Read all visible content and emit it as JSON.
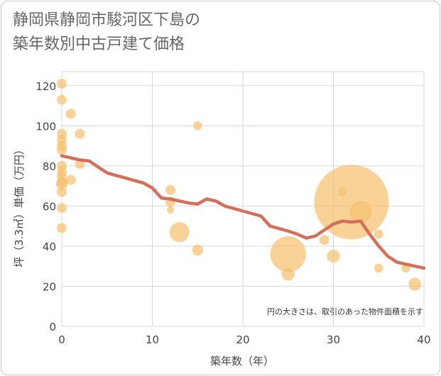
{
  "title": {
    "line1": "静岡県静岡市駿河区下島の",
    "line2": "築年数別中古戸建て価格"
  },
  "chart_data": {
    "type": "scatter",
    "title": "静岡県静岡市駿河区下島の築年数別中古戸建て価格",
    "xlabel": "築年数（年）",
    "ylabel": "坪（3.3㎡）単価（万円）",
    "xlim": [
      0,
      40
    ],
    "ylim": [
      0,
      127
    ],
    "xticks": [
      0,
      10,
      20,
      30,
      40
    ],
    "yticks": [
      0,
      20,
      40,
      60,
      80,
      100,
      120
    ],
    "grid": true,
    "note": "円の大きさは、取引のあった物件面積を示す",
    "colors": {
      "bubble": "#f5c06f",
      "line": "#d4705a",
      "grid": "#d0dbe6",
      "text": "#444444"
    },
    "bubbles": [
      {
        "x": 0,
        "y": 121,
        "size": 1
      },
      {
        "x": 0,
        "y": 113,
        "size": 1
      },
      {
        "x": 0,
        "y": 96,
        "size": 1
      },
      {
        "x": 0,
        "y": 93,
        "size": 1
      },
      {
        "x": 0,
        "y": 90,
        "size": 1
      },
      {
        "x": 0,
        "y": 88,
        "size": 1
      },
      {
        "x": 0,
        "y": 80,
        "size": 1
      },
      {
        "x": 0,
        "y": 77,
        "size": 1
      },
      {
        "x": 0,
        "y": 75,
        "size": 1
      },
      {
        "x": 0,
        "y": 72,
        "size": 1
      },
      {
        "x": 0,
        "y": 71,
        "size": 1.2
      },
      {
        "x": 0,
        "y": 67,
        "size": 1
      },
      {
        "x": 0,
        "y": 59,
        "size": 1
      },
      {
        "x": 0,
        "y": 49,
        "size": 1
      },
      {
        "x": 1,
        "y": 106,
        "size": 1
      },
      {
        "x": 1,
        "y": 73,
        "size": 1
      },
      {
        "x": 2,
        "y": 96,
        "size": 1
      },
      {
        "x": 2,
        "y": 81,
        "size": 1
      },
      {
        "x": 12,
        "y": 68,
        "size": 1
      },
      {
        "x": 12,
        "y": 62,
        "size": 1
      },
      {
        "x": 12,
        "y": 58,
        "size": 0.7
      },
      {
        "x": 13,
        "y": 47,
        "size": 2
      },
      {
        "x": 15,
        "y": 100,
        "size": 0.9
      },
      {
        "x": 15,
        "y": 38,
        "size": 1.1
      },
      {
        "x": 25,
        "y": 36,
        "size": 3.6
      },
      {
        "x": 25,
        "y": 26,
        "size": 1.3
      },
      {
        "x": 29,
        "y": 43,
        "size": 1
      },
      {
        "x": 30,
        "y": 35,
        "size": 1.3
      },
      {
        "x": 31,
        "y": 67,
        "size": 0.9
      },
      {
        "x": 32,
        "y": 62,
        "size": 7.5
      },
      {
        "x": 33,
        "y": 57,
        "size": 2.2
      },
      {
        "x": 35,
        "y": 46,
        "size": 0.9
      },
      {
        "x": 35,
        "y": 29,
        "size": 0.9
      },
      {
        "x": 38,
        "y": 29,
        "size": 0.9
      },
      {
        "x": 39,
        "y": 21,
        "size": 1.3
      }
    ],
    "trend": {
      "x": [
        0,
        1,
        2,
        3,
        5,
        7,
        9,
        10,
        11,
        12,
        13,
        14,
        15,
        16,
        17,
        18,
        20,
        22,
        23,
        25,
        26,
        27,
        28,
        29,
        30,
        31,
        32,
        33,
        34,
        35,
        36,
        37,
        38,
        39,
        40
      ],
      "y": [
        85,
        84,
        83,
        82.5,
        76.5,
        74,
        71.5,
        69,
        64,
        63.5,
        62.5,
        61.5,
        61,
        63.5,
        62.5,
        60,
        57.5,
        55,
        50,
        47.5,
        46,
        44,
        45,
        48,
        51,
        52.5,
        52,
        52.5,
        46,
        40,
        35,
        32,
        31,
        30,
        29
      ]
    }
  }
}
